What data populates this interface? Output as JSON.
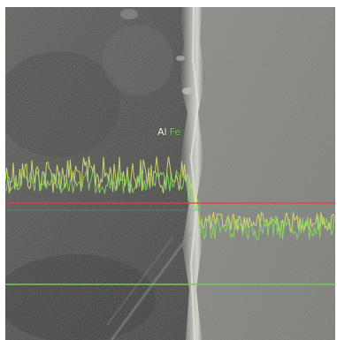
{
  "image": {
    "kind": "SEM cross-section micrograph with EDS line scan overlay",
    "legend": [
      {
        "label": "Al",
        "color": "#f2f2e6"
      },
      {
        "label": "Fe",
        "color": "#7fd05a"
      }
    ],
    "scan_colors": {
      "al_trace": "#d8df6a",
      "fe_trace": "#88d860",
      "scan_line": "#e2403a",
      "baseline": "#6fcf4a"
    }
  }
}
